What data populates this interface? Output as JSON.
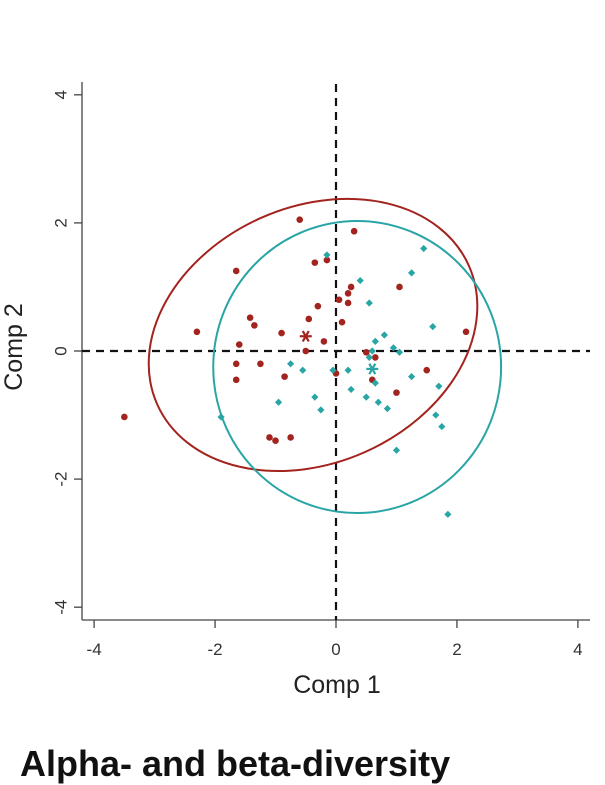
{
  "chart_data": {
    "type": "scatter",
    "xlabel": "Comp 1",
    "ylabel": "Comp 2",
    "xlim": [
      -4.2,
      4.2
    ],
    "ylim": [
      -4.2,
      4.2
    ],
    "x_ticks": [
      -4,
      -2,
      0,
      2,
      4
    ],
    "y_ticks": [
      -4,
      -2,
      0,
      2,
      4
    ],
    "x_tick_labels": [
      "-4",
      "-2",
      "0",
      "2",
      "4"
    ],
    "y_tick_labels": [
      "-4",
      "-2",
      "0",
      "2",
      "4"
    ],
    "reference_lines": {
      "x": 0,
      "y": 0,
      "style": "dashed"
    },
    "grid": false,
    "legend": "none",
    "series": [
      {
        "color": "#a3231e",
        "marker": "dot",
        "centroid": [
          -0.5,
          0.23
        ],
        "ellipse": {
          "center": [
            -0.38,
            0.25
          ],
          "rx": 2.82,
          "ry": 2.0,
          "rotation_deg": 24
        },
        "points": [
          [
            -3.5,
            -1.03
          ],
          [
            -2.3,
            0.3
          ],
          [
            -1.65,
            1.25
          ],
          [
            -1.65,
            -0.2
          ],
          [
            -1.6,
            0.1
          ],
          [
            -1.42,
            0.52
          ],
          [
            -1.35,
            0.4
          ],
          [
            -1.25,
            -0.2
          ],
          [
            -1.1,
            -1.35
          ],
          [
            -1.0,
            -1.4
          ],
          [
            -0.9,
            0.28
          ],
          [
            -0.85,
            -0.4
          ],
          [
            -0.75,
            -1.35
          ],
          [
            -0.6,
            2.05
          ],
          [
            -0.5,
            0.0
          ],
          [
            -0.45,
            0.5
          ],
          [
            -0.35,
            1.38
          ],
          [
            -0.3,
            0.7
          ],
          [
            -0.2,
            0.15
          ],
          [
            -0.15,
            1.42
          ],
          [
            0.0,
            -0.35
          ],
          [
            0.05,
            0.8
          ],
          [
            0.1,
            0.45
          ],
          [
            0.2,
            0.9
          ],
          [
            0.2,
            0.75
          ],
          [
            0.25,
            1.0
          ],
          [
            0.3,
            1.87
          ],
          [
            0.5,
            -0.02
          ],
          [
            0.6,
            -0.45
          ],
          [
            0.65,
            -0.1
          ],
          [
            1.05,
            1.0
          ],
          [
            1.0,
            -0.65
          ],
          [
            1.5,
            -0.3
          ],
          [
            -1.65,
            -0.45
          ],
          [
            2.15,
            0.3
          ]
        ]
      },
      {
        "color": "#2aa5a6",
        "marker": "diamond",
        "centroid": [
          0.6,
          -0.28
        ],
        "ellipse": {
          "center": [
            0.35,
            -0.25
          ],
          "rx": 2.38,
          "ry": 2.28,
          "rotation_deg": 0
        },
        "points": [
          [
            -1.9,
            -1.03
          ],
          [
            -0.95,
            -0.8
          ],
          [
            -0.75,
            -0.2
          ],
          [
            -0.55,
            -0.3
          ],
          [
            -0.35,
            -0.72
          ],
          [
            -0.25,
            -0.92
          ],
          [
            -0.15,
            1.5
          ],
          [
            0.2,
            -0.3
          ],
          [
            0.25,
            -0.6
          ],
          [
            0.4,
            1.1
          ],
          [
            0.5,
            -0.72
          ],
          [
            0.55,
            0.75
          ],
          [
            0.55,
            -0.1
          ],
          [
            0.6,
            0.0
          ],
          [
            0.65,
            0.15
          ],
          [
            0.65,
            -0.5
          ],
          [
            0.7,
            -0.8
          ],
          [
            0.8,
            0.25
          ],
          [
            0.85,
            -0.9
          ],
          [
            0.95,
            0.05
          ],
          [
            1.0,
            -1.55
          ],
          [
            1.25,
            1.22
          ],
          [
            1.25,
            -0.4
          ],
          [
            1.45,
            1.6
          ],
          [
            1.6,
            0.38
          ],
          [
            1.65,
            -1.0
          ],
          [
            1.7,
            -0.55
          ],
          [
            1.75,
            -1.18
          ],
          [
            1.85,
            -2.55
          ],
          [
            -0.05,
            -0.3
          ],
          [
            1.05,
            -0.02
          ]
        ]
      }
    ]
  },
  "bottom_title": "Alpha- and beta-diversity"
}
